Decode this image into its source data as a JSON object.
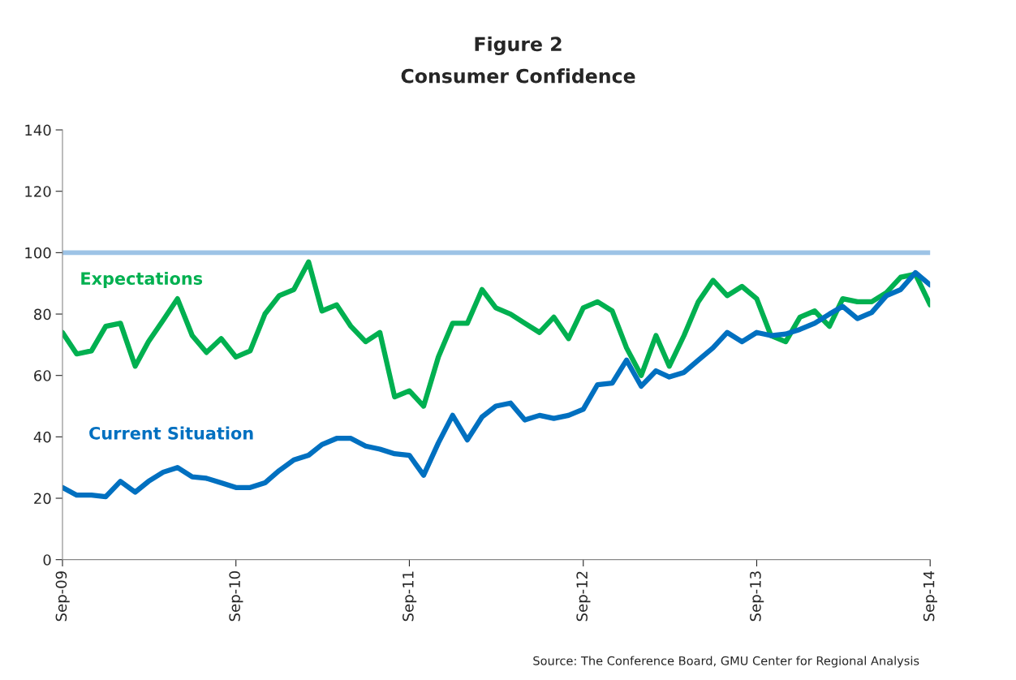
{
  "chart_data": {
    "type": "line",
    "title": "Figure 2",
    "subtitle": "Consumer Confidence",
    "x": [
      "2009-09",
      "2009-10",
      "2009-11",
      "2009-12",
      "2010-01",
      "2010-02",
      "2010-03",
      "2010-04",
      "2010-05",
      "2010-06",
      "2010-07",
      "2010-08",
      "2010-09",
      "2010-10",
      "2010-11",
      "2010-12",
      "2011-01",
      "2011-02",
      "2011-03",
      "2011-04",
      "2011-05",
      "2011-06",
      "2011-07",
      "2011-08",
      "2011-09",
      "2011-10",
      "2011-11",
      "2011-12",
      "2012-01",
      "2012-02",
      "2012-03",
      "2012-04",
      "2012-05",
      "2012-06",
      "2012-07",
      "2012-08",
      "2012-09",
      "2012-10",
      "2012-11",
      "2012-12",
      "2013-01",
      "2013-02",
      "2013-03",
      "2013-04",
      "2013-05",
      "2013-06",
      "2013-07",
      "2013-08",
      "2013-09",
      "2013-10",
      "2013-11",
      "2013-12",
      "2014-01",
      "2014-02",
      "2014-03",
      "2014-04",
      "2014-05",
      "2014-06",
      "2014-07",
      "2014-08",
      "2014-09"
    ],
    "series": [
      {
        "name": "Expectations",
        "color": "#00b050",
        "values": [
          74,
          67,
          68,
          76,
          77,
          63,
          71,
          78,
          85,
          73,
          67.5,
          72,
          66,
          68,
          80,
          86,
          88,
          97,
          81,
          83,
          76,
          71,
          74,
          53,
          55,
          50,
          66,
          77,
          77,
          88,
          82,
          80,
          77,
          74,
          79,
          72,
          82,
          84,
          81,
          69,
          60,
          73,
          63,
          73,
          84,
          91,
          86,
          89,
          85,
          73,
          71,
          79,
          81,
          76,
          85,
          84,
          84,
          87,
          92,
          93,
          83
        ]
      },
      {
        "name": "Current Situation",
        "color": "#0070c0",
        "values": [
          23.5,
          21,
          21,
          20.5,
          25.5,
          22,
          25.5,
          28.5,
          30,
          27,
          26.5,
          25,
          23.5,
          23.5,
          25,
          29,
          32.5,
          34,
          37.5,
          39.5,
          39.5,
          37,
          36,
          34.5,
          34,
          27.5,
          38,
          47,
          39,
          46.5,
          50,
          51,
          45.5,
          47,
          46,
          47,
          49,
          57,
          57.5,
          65,
          56.5,
          61.5,
          59.5,
          61,
          65,
          69,
          74,
          71,
          74,
          73,
          73.5,
          75,
          77,
          80,
          82.5,
          78.5,
          80.5,
          86,
          88,
          93.5,
          89.5
        ]
      }
    ],
    "xlim": [
      "2009-09",
      "2014-09"
    ],
    "xticks": [
      {
        "value": "2009-09",
        "label": "Sep-09"
      },
      {
        "value": "2010-09",
        "label": "Sep-10"
      },
      {
        "value": "2011-09",
        "label": "Sep-11"
      },
      {
        "value": "2012-09",
        "label": "Sep-12"
      },
      {
        "value": "2013-09",
        "label": "Sep-13"
      },
      {
        "value": "2014-09",
        "label": "Sep-14"
      }
    ],
    "ylim": [
      0,
      140
    ],
    "yticks": [
      0,
      20,
      40,
      60,
      80,
      100,
      120,
      140
    ],
    "ref_lines": [
      {
        "axis": "y",
        "value": 100,
        "color": "#9dc3e6"
      }
    ],
    "annotations": [
      "Source: The Conference Board, GMU Center for Regional Analysis"
    ],
    "grid": false,
    "legend": false
  }
}
